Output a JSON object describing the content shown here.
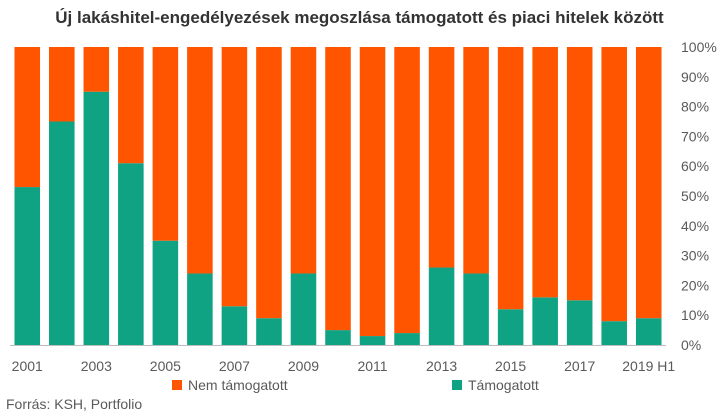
{
  "chart_data": {
    "type": "bar",
    "stacked": true,
    "title": "Új lakáshitel-engedélyezések megoszlása támogatott és piaci hitelek között",
    "categories": [
      "2001",
      "2002",
      "2003",
      "2004",
      "2005",
      "2006",
      "2007",
      "2008",
      "2009",
      "2010",
      "2011",
      "2012",
      "2013",
      "2014",
      "2015",
      "2016",
      "2017",
      "2018",
      "2019 H1"
    ],
    "x_tick_labels": [
      "2001",
      "",
      "2003",
      "",
      "2005",
      "",
      "2007",
      "",
      "2009",
      "",
      "2011",
      "",
      "2013",
      "",
      "2015",
      "",
      "2017",
      "",
      "2019 H1"
    ],
    "series": [
      {
        "name": "Támogatott",
        "color": "#0FA383",
        "values": [
          53,
          75,
          85,
          61,
          35,
          24,
          13,
          9,
          24,
          5,
          3,
          4,
          26,
          24,
          12,
          16,
          15,
          8,
          9
        ]
      },
      {
        "name": "Nem támogatott",
        "color": "#FF5500",
        "values": [
          47,
          25,
          15,
          39,
          65,
          76,
          87,
          91,
          76,
          95,
          97,
          96,
          74,
          76,
          88,
          84,
          85,
          92,
          91
        ]
      }
    ],
    "y_axis": {
      "position": "right",
      "ylim": [
        0,
        100
      ],
      "tick_labels": [
        "0%",
        "10%",
        "20%",
        "30%",
        "40%",
        "50%",
        "60%",
        "70%",
        "80%",
        "90%",
        "100%"
      ]
    },
    "legend": {
      "placement": "bottom",
      "order": [
        "Nem támogatott",
        "Támogatott"
      ]
    },
    "grid": false
  },
  "legend": {
    "nem_label": "Nem támogatott",
    "tam_label": "Támogatott",
    "nem_color": "#FF5500",
    "tam_color": "#0FA383"
  },
  "source": "Forrás: KSH, Portfolio"
}
